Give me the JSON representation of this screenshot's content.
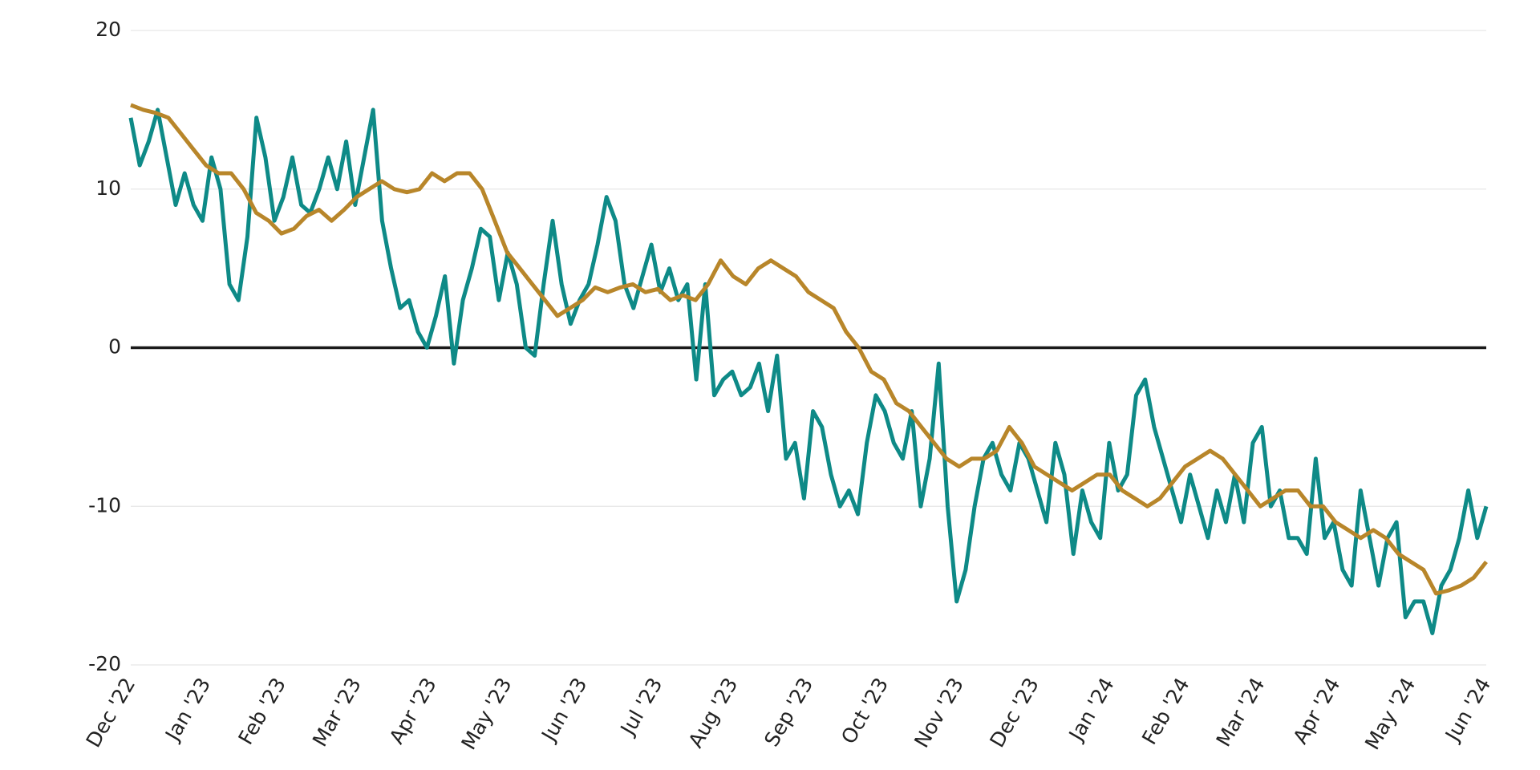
{
  "chart_data": {
    "type": "line",
    "ylim": [
      -20,
      20
    ],
    "yticks": [
      -20,
      -10,
      0,
      10,
      20
    ],
    "grid": true,
    "xticks": [
      "Dec '22",
      "Jan '23",
      "Feb '23",
      "Mar '23",
      "Apr '23",
      "May '23",
      "Jun '23",
      "Jul '23",
      "Aug '23",
      "Sep '23",
      "Oct '23",
      "Nov '23",
      "Dec '23",
      "Jan '24",
      "Feb '24",
      "Mar '24",
      "Apr '24",
      "May '24",
      "Jun '24"
    ],
    "series": [
      {
        "color": "#0e8a87",
        "values": [
          14.5,
          11.5,
          13,
          15,
          12,
          9,
          11,
          9,
          8,
          12,
          10,
          4,
          3,
          7,
          14.5,
          12,
          8,
          9.5,
          12,
          9,
          8.5,
          10,
          12,
          10,
          13,
          9,
          12,
          15,
          8,
          5,
          2.5,
          3,
          1,
          0,
          2,
          4.5,
          -1,
          3,
          5,
          7.5,
          7,
          3,
          6,
          4,
          0,
          -0.5,
          4,
          8,
          4,
          1.5,
          3,
          4,
          6.5,
          9.5,
          8,
          4,
          2.5,
          4.5,
          6.5,
          3.5,
          5,
          3,
          4,
          -2,
          4,
          -3,
          -2,
          -1.5,
          -3,
          -2.5,
          -1,
          -4,
          -0.5,
          -7,
          -6,
          -9.5,
          -4,
          -5,
          -8,
          -10,
          -9,
          -10.5,
          -6,
          -3,
          -4,
          -6,
          -7,
          -4,
          -10,
          -7,
          -1,
          -10,
          -16,
          -14,
          -10,
          -7,
          -6,
          -8,
          -9,
          -6,
          -7,
          -9,
          -11,
          -6,
          -8,
          -13,
          -9,
          -11,
          -12,
          -6,
          -9,
          -8,
          -3,
          -2,
          -5,
          -7,
          -9,
          -11,
          -8,
          -10,
          -12,
          -9,
          -11,
          -8,
          -11,
          -6,
          -5,
          -10,
          -9,
          -12,
          -12,
          -13,
          -7,
          -12,
          -11,
          -14,
          -15,
          -9,
          -12,
          -15,
          -12,
          -11,
          -17,
          -16,
          -16,
          -18,
          -15,
          -14,
          -12,
          -9,
          -12,
          -10
        ]
      },
      {
        "color": "#b8862a",
        "values": [
          15.3,
          15,
          14.8,
          14.5,
          13.5,
          12.5,
          11.5,
          11,
          11,
          10,
          8.5,
          8,
          7.2,
          7.5,
          8.3,
          8.7,
          8,
          8.7,
          9.5,
          10,
          10.5,
          10,
          9.8,
          10,
          11,
          10.5,
          11,
          11,
          10,
          8,
          6,
          5,
          4,
          3,
          2,
          2.5,
          3,
          3.8,
          3.5,
          3.8,
          4,
          3.5,
          3.7,
          3,
          3.3,
          3,
          4,
          5.5,
          4.5,
          4,
          5,
          5.5,
          5,
          4.5,
          3.5,
          3,
          2.5,
          1,
          0,
          -1.5,
          -2,
          -3.5,
          -4,
          -5,
          -6,
          -7,
          -7.5,
          -7,
          -7,
          -6.5,
          -5,
          -6,
          -7.5,
          -8,
          -8.5,
          -9,
          -8.5,
          -8,
          -8,
          -9,
          -9.5,
          -10,
          -9.5,
          -8.5,
          -7.5,
          -7,
          -6.5,
          -7,
          -8,
          -9,
          -10,
          -9.5,
          -9,
          -9,
          -10,
          -10,
          -11,
          -11.5,
          -12,
          -11.5,
          -12,
          -13,
          -13.5,
          -14,
          -15.5,
          -15.3,
          -15,
          -14.5,
          -13.5
        ]
      }
    ]
  }
}
